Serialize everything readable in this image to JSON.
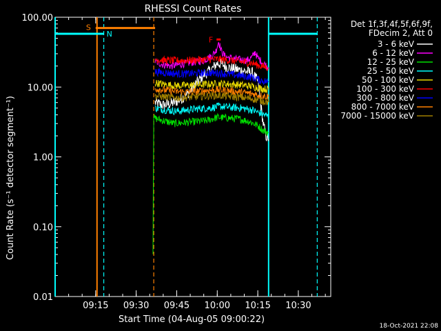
{
  "chart_data": {
    "type": "line",
    "title": "RHESSI Count Rates",
    "xlabel": "Start Time (04-Aug-05 09:00:22)",
    "ylabel": "Count Rate (s⁻¹ detector segment⁻¹)",
    "yscale": "log",
    "ylim": [
      0.01,
      100
    ],
    "xlim_minutes": [
      0,
      102
    ],
    "y_ticks": [
      "0.01",
      "0.10",
      "1.00",
      "10.00",
      "100.00"
    ],
    "x_ticks": [
      {
        "label": "09:15",
        "t": 15
      },
      {
        "label": "09:30",
        "t": 30
      },
      {
        "label": "09:45",
        "t": 45
      },
      {
        "label": "10:00",
        "t": 60
      },
      {
        "label": "10:15",
        "t": 75
      },
      {
        "label": "10:30",
        "t": 90
      }
    ],
    "legend_header": [
      "Det 1f,3f,4f,5f,6f,9f,",
      "FDecim 2, Att 0"
    ],
    "legend_placement": "top-right",
    "series": [
      {
        "name": "3 - 6 keV",
        "color": "#ffffff",
        "points": [
          [
            37,
            6.0
          ],
          [
            40,
            5.5
          ],
          [
            43,
            5.8
          ],
          [
            46,
            6.5
          ],
          [
            49,
            8.0
          ],
          [
            52,
            11
          ],
          [
            55,
            15
          ],
          [
            58,
            18
          ],
          [
            60,
            22
          ],
          [
            62,
            21
          ],
          [
            64,
            19
          ],
          [
            67,
            18
          ],
          [
            70,
            17
          ],
          [
            73,
            16
          ],
          [
            75,
            12
          ],
          [
            76,
            6
          ],
          [
            77,
            3
          ],
          [
            78,
            2.0
          ],
          [
            79,
            1.8
          ]
        ]
      },
      {
        "name": "6 - 12 keV",
        "color": "#ff00ff",
        "points": [
          [
            37,
            23
          ],
          [
            40,
            21
          ],
          [
            43,
            20
          ],
          [
            46,
            21
          ],
          [
            49,
            22
          ],
          [
            52,
            23
          ],
          [
            55,
            24
          ],
          [
            58,
            28
          ],
          [
            59.5,
            33
          ],
          [
            60.5,
            45
          ],
          [
            61.5,
            33
          ],
          [
            63,
            27
          ],
          [
            67,
            25
          ],
          [
            71,
            24
          ],
          [
            73,
            27
          ],
          [
            74,
            32
          ],
          [
            75,
            26
          ],
          [
            77,
            22
          ],
          [
            79,
            19
          ]
        ]
      },
      {
        "name": "12 - 25 keV",
        "color": "#00e000",
        "points": [
          [
            36.2,
            0.045
          ],
          [
            36.5,
            3.6
          ],
          [
            40,
            3.3
          ],
          [
            44,
            3.0
          ],
          [
            48,
            3.1
          ],
          [
            52,
            3.2
          ],
          [
            56,
            3.3
          ],
          [
            60,
            3.7
          ],
          [
            64,
            3.6
          ],
          [
            68,
            3.5
          ],
          [
            72,
            3.2
          ],
          [
            75,
            2.8
          ],
          [
            77,
            2.4
          ],
          [
            79,
            2.2
          ]
        ]
      },
      {
        "name": "25 - 50 keV",
        "color": "#00ffff",
        "points": [
          [
            37,
            5.0
          ],
          [
            41,
            4.7
          ],
          [
            45,
            4.5
          ],
          [
            49,
            4.7
          ],
          [
            53,
            4.9
          ],
          [
            57,
            5.0
          ],
          [
            61,
            5.3
          ],
          [
            65,
            5.1
          ],
          [
            69,
            5.0
          ],
          [
            73,
            4.7
          ],
          [
            76,
            4.2
          ],
          [
            79,
            3.8
          ]
        ]
      },
      {
        "name": "50 - 100 keV",
        "color": "#e8d800",
        "points": [
          [
            37,
            11.5
          ],
          [
            41,
            10.8
          ],
          [
            45,
            10.5
          ],
          [
            49,
            10.6
          ],
          [
            53,
            10.8
          ],
          [
            57,
            11.0
          ],
          [
            61,
            11.2
          ],
          [
            65,
            11.0
          ],
          [
            69,
            10.7
          ],
          [
            73,
            10.2
          ],
          [
            76,
            9.6
          ],
          [
            79,
            9.2
          ]
        ]
      },
      {
        "name": "100 - 300 keV",
        "color": "#ff0000",
        "points": [
          [
            37,
            25
          ],
          [
            41,
            24
          ],
          [
            45,
            24
          ],
          [
            49,
            24
          ],
          [
            53,
            24.5
          ],
          [
            57,
            25
          ],
          [
            61,
            25
          ],
          [
            65,
            24
          ],
          [
            69,
            23
          ],
          [
            73,
            22
          ],
          [
            76,
            20
          ],
          [
            79,
            19
          ]
        ]
      },
      {
        "name": "300 - 800 keV",
        "color": "#0000ff",
        "points": [
          [
            37,
            16.5
          ],
          [
            41,
            16
          ],
          [
            45,
            15.5
          ],
          [
            49,
            15.5
          ],
          [
            53,
            15.8
          ],
          [
            57,
            16
          ],
          [
            61,
            15.8
          ],
          [
            65,
            15.2
          ],
          [
            69,
            14.5
          ],
          [
            73,
            13.8
          ],
          [
            76,
            12.5
          ],
          [
            79,
            11.8
          ]
        ]
      },
      {
        "name": "800 - 7000 keV",
        "color": "#ff8000",
        "points": [
          [
            37,
            9.5
          ],
          [
            41,
            9.0
          ],
          [
            45,
            8.6
          ],
          [
            49,
            8.5
          ],
          [
            53,
            8.7
          ],
          [
            57,
            9.0
          ],
          [
            61,
            9.1
          ],
          [
            65,
            8.8
          ],
          [
            69,
            8.4
          ],
          [
            73,
            8.0
          ],
          [
            76,
            7.6
          ],
          [
            79,
            7.3
          ]
        ]
      },
      {
        "name": "7000 - 15000 keV",
        "color": "#a08000",
        "points": [
          [
            37,
            7.5
          ],
          [
            41,
            7.2
          ],
          [
            45,
            7.0
          ],
          [
            49,
            7.1
          ],
          [
            53,
            7.3
          ],
          [
            57,
            7.5
          ],
          [
            61,
            7.6
          ],
          [
            65,
            7.3
          ],
          [
            69,
            7.1
          ],
          [
            73,
            6.8
          ],
          [
            76,
            6.4
          ],
          [
            79,
            6.1
          ]
        ]
      }
    ],
    "annotations": {
      "S": {
        "label": "S",
        "color": "#ff8000",
        "t_start": 15,
        "t_end": 37,
        "level": 70
      },
      "N": {
        "label": "N",
        "color": "#00ffff",
        "segments": [
          [
            0,
            18
          ],
          [
            79,
            97
          ]
        ],
        "level": 58
      },
      "F": {
        "label": "F",
        "color": "#ff0000",
        "t": 60.5,
        "level": 48
      }
    },
    "vertical_lines": [
      {
        "t": 0,
        "color": "#00ffff",
        "style": "solid"
      },
      {
        "t": 15.5,
        "color": "#ff8000",
        "style": "solid"
      },
      {
        "t": 18,
        "color": "#00ffff",
        "style": "dashed"
      },
      {
        "t": 36.5,
        "color": "#ff8000",
        "style": "dashed"
      },
      {
        "t": 79,
        "color": "#00ffff",
        "style": "solid"
      },
      {
        "t": 97,
        "color": "#00ffff",
        "style": "dashed"
      }
    ]
  },
  "footer": {
    "timestamp": "18-Oct-2021 22:08"
  }
}
